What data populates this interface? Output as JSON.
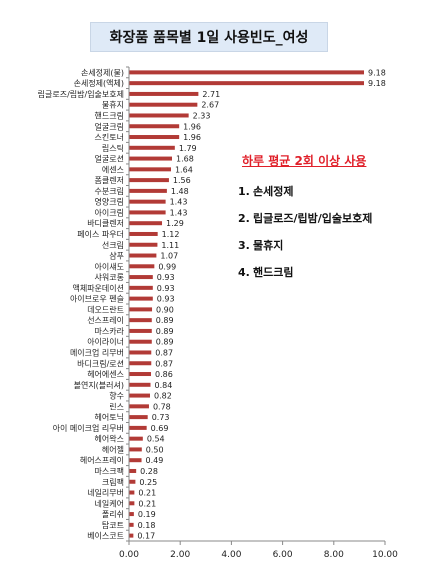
{
  "chart_data": {
    "type": "bar",
    "orientation": "horizontal",
    "title": "화장품 품목별 1일 사용빈도_여성",
    "xlim": [
      0,
      10
    ],
    "xticks": [
      "0.00",
      "2.00",
      "4.00",
      "6.00",
      "8.00",
      "10.00"
    ],
    "grid": false,
    "bar_color": "#b23a36",
    "categories": [
      "손세정제(물)",
      "손세정제(액체)",
      "립글로즈/립밤/입술보호제",
      "물휴지",
      "핸드크림",
      "얼굴크림",
      "스킨토너",
      "립스틱",
      "얼굴로션",
      "에센스",
      "폼클렌저",
      "수분크림",
      "영양크림",
      "아이크림",
      "바디클렌저",
      "페이스 파우더",
      "선크림",
      "샴푸",
      "아이섀도",
      "샤워코롱",
      "액체파운데이션",
      "아이브로우 펜슬",
      "데오드란트",
      "선스프레이",
      "마스카라",
      "아이라이너",
      "메이크업 리무버",
      "바디크림/로션",
      "헤어에센스",
      "볼연지(블러셔)",
      "향수",
      "린스",
      "헤어토닉",
      "아이 메이크업 리무버",
      "헤어왁스",
      "헤어젤",
      "헤어스프레이",
      "마스크팩",
      "크림팩",
      "네일리무버",
      "네일케어",
      "폴리쉬",
      "탑코트",
      "베이스코트"
    ],
    "values": [
      9.18,
      9.18,
      2.71,
      2.67,
      2.33,
      1.96,
      1.96,
      1.79,
      1.68,
      1.64,
      1.56,
      1.48,
      1.43,
      1.43,
      1.29,
      1.12,
      1.11,
      1.07,
      0.99,
      0.93,
      0.93,
      0.93,
      0.9,
      0.89,
      0.89,
      0.89,
      0.87,
      0.87,
      0.86,
      0.84,
      0.82,
      0.78,
      0.73,
      0.69,
      0.54,
      0.5,
      0.49,
      0.28,
      0.25,
      0.21,
      0.21,
      0.19,
      0.18,
      0.17
    ],
    "value_labels": [
      "9.18",
      "9.18",
      "2.71",
      "2.67",
      "2.33",
      "1.96",
      "1.96",
      "1.79",
      "1.68",
      "1.64",
      "1.56",
      "1.48",
      "1.43",
      "1.43",
      "1.29",
      "1.12",
      "1.11",
      "1.07",
      "0.99",
      "0.93",
      "0.93",
      "0.93",
      "0.90",
      "0.89",
      "0.89",
      "0.89",
      "0.87",
      "0.87",
      "0.86",
      "0.84",
      "0.82",
      "0.78",
      "0.73",
      "0.69",
      "0.54",
      "0.50",
      "0.49",
      "0.28",
      "0.25",
      "0.21",
      "0.21",
      "0.19",
      "0.18",
      "0.17"
    ]
  },
  "annotation": {
    "title": "하루 평균 2회 이상 사용",
    "items": [
      {
        "num": "1.",
        "label": "손세정제"
      },
      {
        "num": "2.",
        "label": "립글로즈/립밤/입술보호제"
      },
      {
        "num": "3.",
        "label": "물휴지"
      },
      {
        "num": "4.",
        "label": "핸드크림"
      }
    ]
  }
}
